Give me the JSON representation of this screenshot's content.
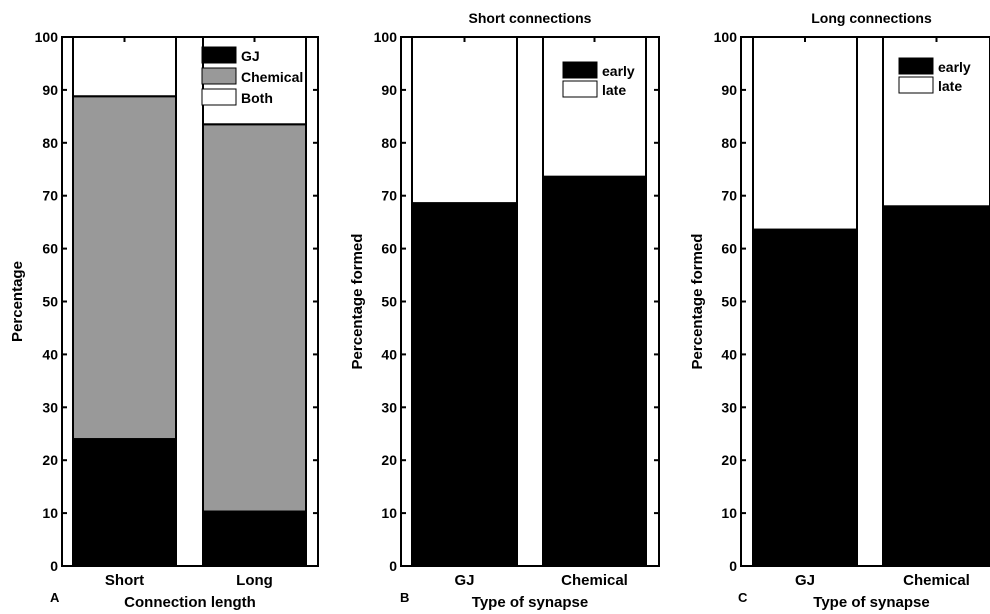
{
  "chart_data": [
    {
      "panel": "A",
      "type": "bar",
      "stacked": true,
      "title": "",
      "xlabel": "Connection length",
      "ylabel": "Percentage",
      "categories": [
        "Short",
        "Long"
      ],
      "series": [
        {
          "name": "GJ",
          "color": "#000000",
          "values": [
            24,
            10.3
          ]
        },
        {
          "name": "Chemical",
          "color": "#999999",
          "values": [
            64.8,
            73.2
          ]
        },
        {
          "name": "Both",
          "color": "#ffffff",
          "values": [
            11.2,
            16.5
          ]
        }
      ],
      "ylim": [
        0,
        100
      ],
      "yticks": [
        "0",
        "10",
        "20",
        "30",
        "40",
        "50",
        "60",
        "70",
        "80",
        "90",
        "100"
      ],
      "legend_position": "top-right",
      "grid": false
    },
    {
      "panel": "B",
      "type": "bar",
      "stacked": true,
      "title": "Short connections",
      "xlabel": "Type of synapse",
      "ylabel": "Percentage formed",
      "categories": [
        "GJ",
        "Chemical"
      ],
      "series": [
        {
          "name": "early",
          "color": "#000000",
          "values": [
            68.6,
            73.6
          ]
        },
        {
          "name": "late",
          "color": "#ffffff",
          "values": [
            31.4,
            26.4
          ]
        }
      ],
      "ylim": [
        0,
        100
      ],
      "yticks": [
        "0",
        "10",
        "20",
        "30",
        "40",
        "50",
        "60",
        "70",
        "80",
        "90",
        "100"
      ],
      "legend_position": "top-right",
      "grid": false
    },
    {
      "panel": "C",
      "type": "bar",
      "stacked": true,
      "title": "Long connections",
      "xlabel": "Type of synapse",
      "ylabel": "Percentage formed",
      "categories": [
        "GJ",
        "Chemical"
      ],
      "series": [
        {
          "name": "early",
          "color": "#000000",
          "values": [
            63.6,
            68
          ]
        },
        {
          "name": "late",
          "color": "#ffffff",
          "values": [
            36.4,
            32
          ]
        }
      ],
      "ylim": [
        0,
        100
      ],
      "yticks": [
        "0",
        "10",
        "20",
        "30",
        "40",
        "50",
        "60",
        "70",
        "80",
        "90",
        "100"
      ],
      "legend_position": "top-right",
      "grid": false
    }
  ]
}
